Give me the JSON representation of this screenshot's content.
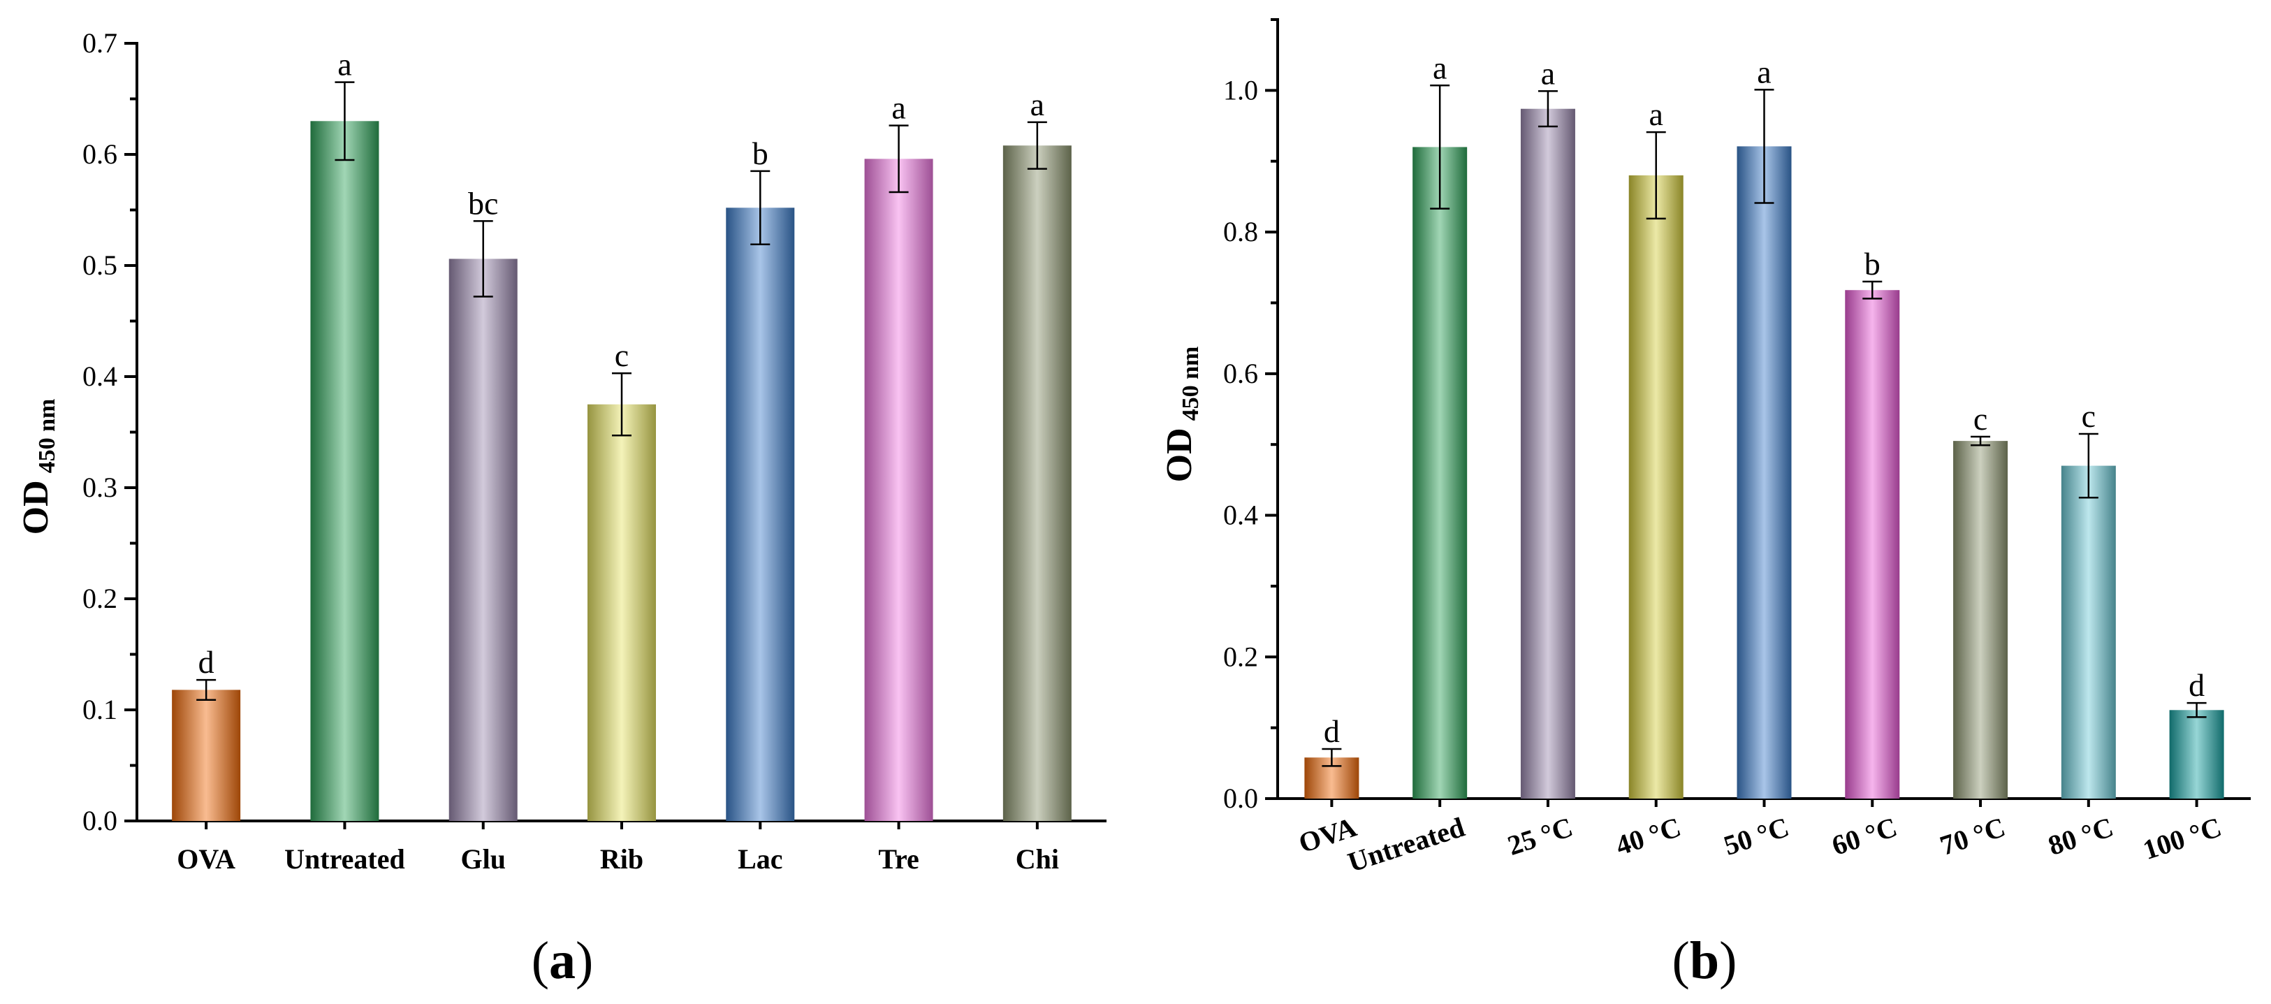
{
  "colors": {
    "OVA": "#f26b0a",
    "Untreated": "#2fa45a",
    "Glu": "#9c89b0",
    "Rib": "#e6e463",
    "Lac": "#3f7fcc",
    "Tre": "#f17ae3",
    "Chi": "#8e9670",
    "25 °C": "#9c89b0",
    "40 °C": "#d4cd3c",
    "50 °C": "#3f7fcc",
    "60 °C": "#ea5bd8",
    "70 °C": "#8e9670",
    "80 °C": "#6cc9d6",
    "100 °C": "#18a3a3"
  },
  "chart_data": [
    {
      "type": "bar",
      "panel_label": "a",
      "ylabel": "OD",
      "ylabel_sub": "450 nm",
      "ylim": [
        0,
        0.7
      ],
      "yticks": [
        "0.0",
        "0.1",
        "0.2",
        "0.3",
        "0.4",
        "0.5",
        "0.6",
        "0.7"
      ],
      "grid": false,
      "categories": [
        "OVA",
        "Untreated",
        "Glu",
        "Rib",
        "Lac",
        "Tre",
        "Chi"
      ],
      "values": [
        0.118,
        0.63,
        0.506,
        0.375,
        0.552,
        0.596,
        0.608
      ],
      "errors": [
        0.009,
        0.035,
        0.034,
        0.028,
        0.033,
        0.03,
        0.021
      ],
      "annotations": [
        "d",
        "a",
        "bc",
        "c",
        "b",
        "a",
        "a"
      ]
    },
    {
      "type": "bar",
      "panel_label": "b",
      "ylabel": "OD",
      "ylabel_sub": "450 nm",
      "ylim": [
        0,
        1.1
      ],
      "yticks": [
        "0.0",
        "0.2",
        "0.4",
        "0.6",
        "0.8",
        "1.0"
      ],
      "grid": false,
      "categories": [
        "OVA",
        "Untreated",
        "25 °C",
        "40 °C",
        "50 °C",
        "60 °C",
        "70 °C",
        "80 °C",
        "100 °C"
      ],
      "values": [
        0.058,
        0.92,
        0.974,
        0.88,
        0.921,
        0.718,
        0.505,
        0.47,
        0.125
      ],
      "errors": [
        0.012,
        0.087,
        0.025,
        0.061,
        0.08,
        0.012,
        0.006,
        0.045,
        0.01
      ],
      "annotations": [
        "d",
        "a",
        "a",
        "a",
        "a",
        "b",
        "c",
        "c",
        "d"
      ]
    }
  ]
}
